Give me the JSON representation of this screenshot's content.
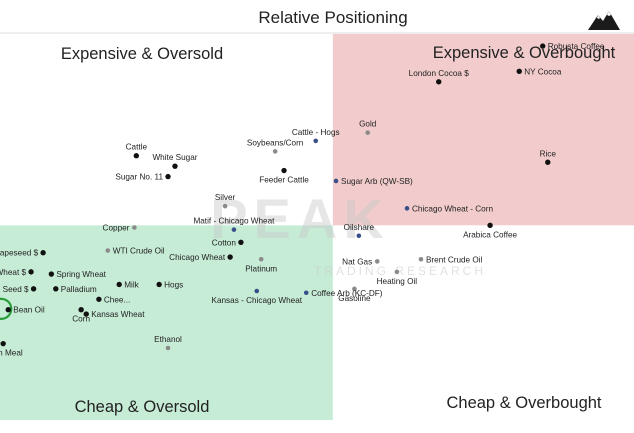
{
  "chart_data": {
    "type": "scatter",
    "title": "Relative Positioning",
    "xlabel": "",
    "ylabel": "",
    "xlim": [
      0,
      100
    ],
    "ylim": [
      0,
      100
    ],
    "grid": false,
    "legend": "none",
    "quadrants": {
      "top_left": "Expensive & Oversold",
      "top_right": "Expensive & Overbought",
      "bottom_left": "Cheap & Oversold",
      "bottom_right": "Cheap & Overbought"
    },
    "colors": {
      "expensive_overbought_fill": "#f2cccc",
      "cheap_oversold_fill": "#c7ecd6",
      "point": "#111111",
      "point_highlight": "#3a4f8a",
      "point_muted": "#8a8a8a",
      "circle": "#2a9d3a"
    },
    "watermark": {
      "logo_text": "PEAK",
      "sub_text": "TRADING RESEARCH"
    },
    "points": [
      {
        "label": "Robusta Coffee",
        "x": 85.6,
        "y": 91.7
      },
      {
        "label": "NY Cocoa",
        "x": 81.9,
        "y": 85.9
      },
      {
        "label": "London Cocoa $",
        "x": 69.2,
        "y": 83.5
      },
      {
        "label": "Gold",
        "x": 58.0,
        "y": 71.8
      },
      {
        "label": "Cattle - Hogs",
        "x": 49.8,
        "y": 69.9
      },
      {
        "label": "Soybeans/Corn",
        "x": 43.4,
        "y": 67.5
      },
      {
        "label": "Cattle",
        "x": 21.5,
        "y": 66.5
      },
      {
        "label": "White Sugar",
        "x": 27.6,
        "y": 64.1
      },
      {
        "label": "Feeder Cattle",
        "x": 44.8,
        "y": 63.1
      },
      {
        "label": "Sugar No. 11",
        "x": 26.5,
        "y": 61.7
      },
      {
        "label": "Rice",
        "x": 86.4,
        "y": 65.0
      },
      {
        "label": "Sugar Arb (QW-SB)",
        "x": 53.0,
        "y": 60.7
      },
      {
        "label": "Silver",
        "x": 35.5,
        "y": 54.9
      },
      {
        "label": "Chicago Wheat - Corn",
        "x": 64.2,
        "y": 54.4
      },
      {
        "label": "Matif - Chicago Wheat",
        "x": 36.9,
        "y": 49.5
      },
      {
        "label": "Copper",
        "x": 21.2,
        "y": 50.0
      },
      {
        "label": "Arabica Coffee",
        "x": 77.3,
        "y": 50.5
      },
      {
        "label": "Oilshare",
        "x": 56.6,
        "y": 48.1
      },
      {
        "label": "Cotton",
        "x": 38.0,
        "y": 46.6
      },
      {
        "label": "WTI Crude Oil",
        "x": 17.0,
        "y": 44.7
      },
      {
        "label": "Chicago Wheat",
        "x": 36.3,
        "y": 43.2
      },
      {
        "label": "Platinum",
        "x": 41.2,
        "y": 42.7
      },
      {
        "label": "Brent Crude Oil",
        "x": 66.4,
        "y": 42.7
      },
      {
        "label": "Nat Gas",
        "x": 59.5,
        "y": 42.2
      },
      {
        "label": "Heating Oil",
        "x": 62.6,
        "y": 39.8
      },
      {
        "label": "Rapeseed $",
        "x": 6.8,
        "y": 44.2
      },
      {
        "label": "Wheat $",
        "x": 4.9,
        "y": 39.8
      },
      {
        "label": "Spring Wheat",
        "x": 8.1,
        "y": 39.3
      },
      {
        "label": "Milk",
        "x": 18.8,
        "y": 36.9
      },
      {
        "label": "Hogs",
        "x": 25.1,
        "y": 36.9
      },
      {
        "label": "Seed $",
        "x": 5.3,
        "y": 35.9
      },
      {
        "label": "Palladium",
        "x": 8.8,
        "y": 35.9
      },
      {
        "label": "Gasoline",
        "x": 55.9,
        "y": 35.9
      },
      {
        "label": "Kansas - Chicago Wheat",
        "x": 40.5,
        "y": 35.4
      },
      {
        "label": "Coffee Arb (KC-DF)",
        "x": 48.3,
        "y": 35.0
      },
      {
        "label": "Chee...",
        "x": 15.6,
        "y": 33.5
      },
      {
        "label": "Bean Oil",
        "x": 1.3,
        "y": 31.1
      },
      {
        "label": "Corn",
        "x": 12.8,
        "y": 31.1
      },
      {
        "label": "Kansas Wheat",
        "x": 13.6,
        "y": 30.1
      },
      {
        "label": "Bean Meal",
        "x": 0.5,
        "y": 23.3
      },
      {
        "label": "Ethanol",
        "x": 26.5,
        "y": 22.3
      }
    ]
  }
}
